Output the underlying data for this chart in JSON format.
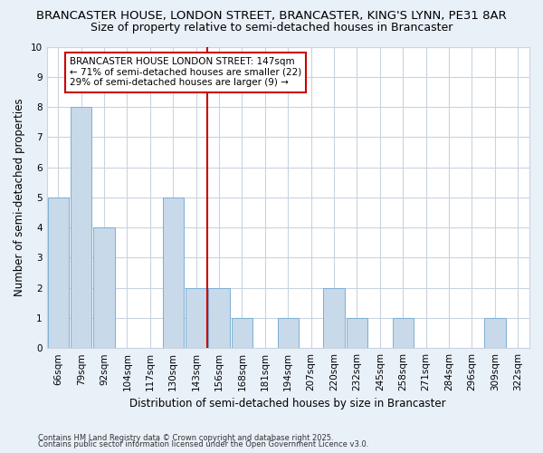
{
  "title": "BRANCASTER HOUSE, LONDON STREET, BRANCASTER, KING'S LYNN, PE31 8AR",
  "subtitle": "Size of property relative to semi-detached houses in Brancaster",
  "xlabel": "Distribution of semi-detached houses by size in Brancaster",
  "ylabel": "Number of semi-detached properties",
  "categories": [
    "66sqm",
    "79sqm",
    "92sqm",
    "104sqm",
    "117sqm",
    "130sqm",
    "143sqm",
    "156sqm",
    "168sqm",
    "181sqm",
    "194sqm",
    "207sqm",
    "220sqm",
    "232sqm",
    "245sqm",
    "258sqm",
    "271sqm",
    "284sqm",
    "296sqm",
    "309sqm",
    "322sqm"
  ],
  "values": [
    5,
    8,
    4,
    0,
    0,
    5,
    2,
    2,
    1,
    0,
    1,
    0,
    2,
    1,
    0,
    1,
    0,
    0,
    0,
    1,
    0
  ],
  "bar_color": "#c8d9ea",
  "bar_edge_color": "#7bafd4",
  "highlight_index": 6,
  "highlight_line_color": "#cc0000",
  "annotation_title": "BRANCASTER HOUSE LONDON STREET: 147sqm",
  "annotation_line1": "← 71% of semi-detached houses are smaller (22)",
  "annotation_line2": "29% of semi-detached houses are larger (9) →",
  "annotation_box_color": "#cc0000",
  "ylim": [
    0,
    10
  ],
  "yticks": [
    0,
    1,
    2,
    3,
    4,
    5,
    6,
    7,
    8,
    9,
    10
  ],
  "footer1": "Contains HM Land Registry data © Crown copyright and database right 2025.",
  "footer2": "Contains public sector information licensed under the Open Government Licence v3.0.",
  "bg_color": "#e8f0f8",
  "plot_bg_color": "#ffffff",
  "grid_color": "#c8d4e0",
  "title_fontsize": 9.5,
  "subtitle_fontsize": 9.0,
  "annotation_fontsize": 7.5,
  "axis_label_fontsize": 8.5,
  "tick_fontsize": 7.5
}
